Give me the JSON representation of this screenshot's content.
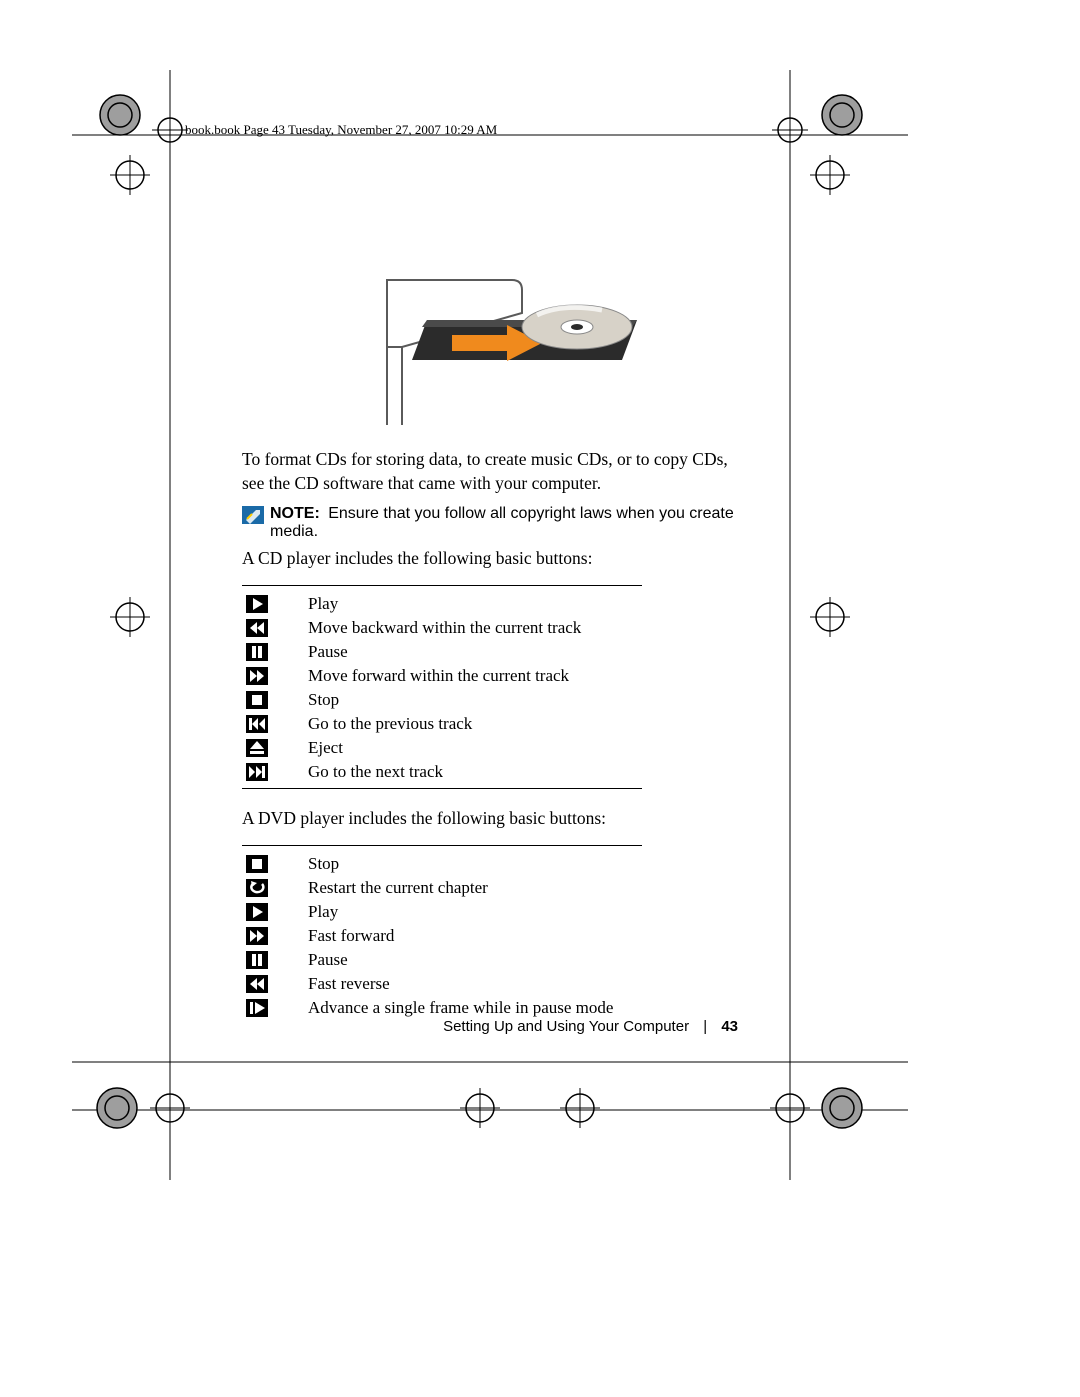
{
  "meta": {
    "header_line": "book.book  Page 43  Tuesday, November 27, 2007  10:29 AM"
  },
  "paragraphs": {
    "p1": "To format CDs for storing data, to create music CDs, or to copy CDs, see the CD software that came with your computer.",
    "p2": "A CD player includes the following basic buttons:",
    "p3": "A DVD player includes the following basic buttons:"
  },
  "note": {
    "label": "NOTE:",
    "text": " Ensure that you follow all copyright laws when you create media.",
    "icon_bg": "#1a6aa7"
  },
  "cd_buttons": [
    {
      "name": "play-icon",
      "label": "Play"
    },
    {
      "name": "skip-back-icon",
      "label": "Move backward within the current track"
    },
    {
      "name": "pause-icon",
      "label": "Pause"
    },
    {
      "name": "skip-forward-icon",
      "label": "Move forward within the current track"
    },
    {
      "name": "stop-icon",
      "label": "Stop"
    },
    {
      "name": "prev-track-icon",
      "label": "Go to the previous track"
    },
    {
      "name": "eject-icon",
      "label": "Eject"
    },
    {
      "name": "next-track-icon",
      "label": "Go to the next track"
    }
  ],
  "dvd_buttons": [
    {
      "name": "stop-icon",
      "label": "Stop"
    },
    {
      "name": "restart-icon",
      "label": "Restart the current chapter"
    },
    {
      "name": "play-icon",
      "label": "Play"
    },
    {
      "name": "fast-forward-icon",
      "label": "Fast forward"
    },
    {
      "name": "pause-icon",
      "label": "Pause"
    },
    {
      "name": "fast-reverse-icon",
      "label": "Fast reverse"
    },
    {
      "name": "frame-advance-icon",
      "label": "Advance a single frame while in pause mode"
    }
  ],
  "footer": {
    "section": "Setting Up and Using Your Computer",
    "separator": "|",
    "page": "43"
  },
  "style": {
    "page_bg": "#ffffff",
    "text_color": "#000000",
    "body_font": "Georgia, serif",
    "note_font": "Arial, sans-serif",
    "body_fontsize_pt": 13,
    "note_fontsize_pt": 12,
    "table_border_color": "#000000",
    "icon_bg": "#000000",
    "icon_fg": "#ffffff"
  },
  "illustration": {
    "desc": "Line drawing of a desktop PC with an open optical drive tray and a CD being inserted, with an orange arrow.",
    "pc_stroke": "#5a5a5a",
    "tray_color": "#2b2b2b",
    "disc_outer": "#d7d2c8",
    "disc_shine": "#ffffff",
    "arrow_color": "#f08a1d"
  }
}
